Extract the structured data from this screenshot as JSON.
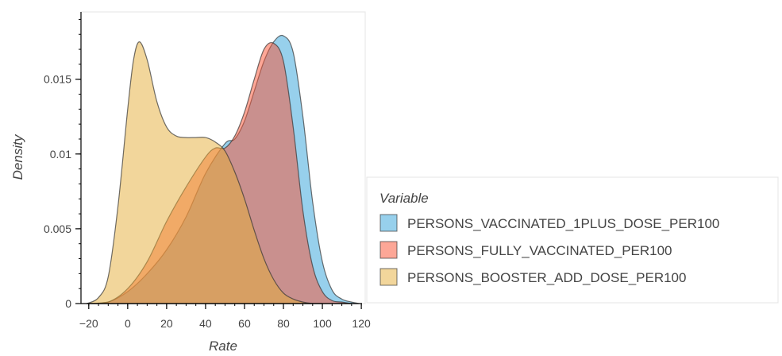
{
  "chart_data": {
    "type": "area",
    "xlabel": "Rate",
    "ylabel": "Density",
    "xlim": [
      -24,
      122
    ],
    "ylim": [
      0,
      0.0195
    ],
    "x_ticks": [
      -20,
      0,
      20,
      40,
      60,
      80,
      100,
      120
    ],
    "x_tick_labels": [
      "−20",
      "0",
      "20",
      "40",
      "60",
      "80",
      "100",
      "120"
    ],
    "y_ticks": [
      0,
      0.005,
      0.01,
      0.015
    ],
    "y_tick_labels": [
      "0",
      "0.005",
      "0.01",
      "0.015"
    ],
    "grid": false,
    "legend": {
      "title": "Variable",
      "placement": "right"
    },
    "series": [
      {
        "name": "PERSONS_VACCINATED_1PLUS_DOSE_PER100",
        "color": "#30a2da",
        "x": [
          -21,
          -10,
          0,
          10,
          20,
          30,
          40,
          50,
          55,
          60,
          65,
          70,
          75,
          80,
          85,
          90,
          95,
          100,
          105,
          110,
          115,
          119
        ],
        "y": [
          0,
          0.0001,
          0.0008,
          0.002,
          0.0036,
          0.0058,
          0.0087,
          0.0107,
          0.011,
          0.0122,
          0.0142,
          0.0162,
          0.0175,
          0.0179,
          0.0168,
          0.0125,
          0.0068,
          0.0028,
          0.0009,
          0.0003,
          0.0001,
          0
        ]
      },
      {
        "name": "PERSONS_FULLY_VACCINATED_PER100",
        "color": "#fc4f30",
        "x": [
          -21,
          -10,
          0,
          10,
          20,
          30,
          40,
          45,
          50,
          55,
          60,
          65,
          70,
          75,
          80,
          85,
          90,
          95,
          100,
          105,
          110,
          115
        ],
        "y": [
          0,
          0.0001,
          0.001,
          0.0028,
          0.0055,
          0.0078,
          0.0098,
          0.0104,
          0.0104,
          0.0112,
          0.0128,
          0.015,
          0.017,
          0.0174,
          0.0162,
          0.0118,
          0.0062,
          0.0025,
          0.0008,
          0.0002,
          0.0001,
          0
        ]
      },
      {
        "name": "PERSONS_BOOSTER_ADD_DOSE_PER100",
        "color": "#e5ae38",
        "x": [
          -21,
          -15,
          -10,
          -5,
          0,
          3,
          6,
          10,
          15,
          20,
          25,
          30,
          35,
          40,
          45,
          50,
          55,
          60,
          65,
          70,
          75,
          80,
          85,
          90,
          95,
          100
        ],
        "y": [
          0,
          0.0004,
          0.0018,
          0.0065,
          0.013,
          0.0163,
          0.0175,
          0.0163,
          0.0135,
          0.0118,
          0.0112,
          0.0111,
          0.0111,
          0.0111,
          0.0108,
          0.0102,
          0.0088,
          0.007,
          0.0049,
          0.003,
          0.0016,
          0.0007,
          0.0003,
          0.0001,
          0,
          0
        ]
      }
    ]
  }
}
